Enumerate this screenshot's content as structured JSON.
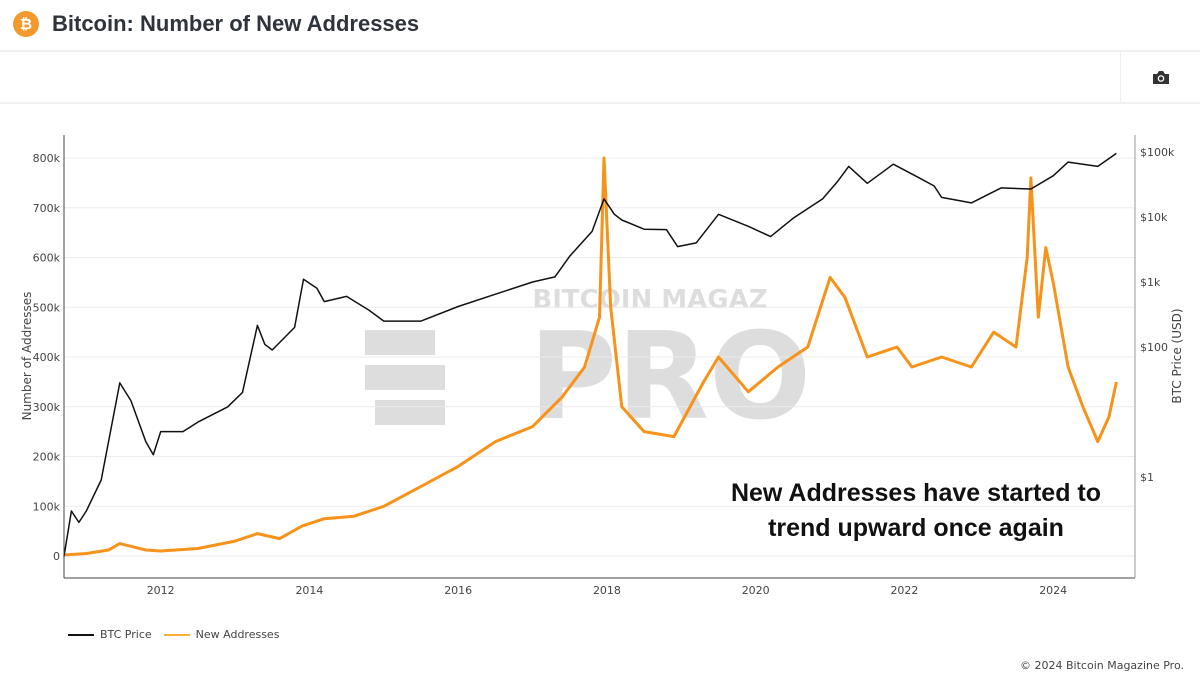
{
  "header": {
    "title": "Bitcoin: Number of New Addresses",
    "logo_icon": "bitcoin-icon"
  },
  "toolbar": {
    "camera_icon": "camera-icon"
  },
  "watermark": "BITCOIN MAGAZINE PRO",
  "annotation": {
    "line1": "New Addresses have started to",
    "line2": "trend upward once again"
  },
  "footer": {
    "copyright": "© 2024 Bitcoin Magazine Pro."
  },
  "chart_data": {
    "type": "line",
    "xlim": [
      2010.7,
      2025.1
    ],
    "x_ticks": [
      "2012",
      "2014",
      "2016",
      "2018",
      "2020",
      "2022",
      "2024"
    ],
    "y_left": {
      "label": "Number of Addresses",
      "range": [
        -40000,
        850000
      ],
      "ticks": [
        "0",
        "100k",
        "200k",
        "300k",
        "400k",
        "500k",
        "600k",
        "700k",
        "800k"
      ]
    },
    "y_right": {
      "label": "BTC Price (USD)",
      "scale": "log",
      "range": [
        0.02,
        200000
      ],
      "ticks": [
        "$1",
        "$100",
        "$1k",
        "$10k",
        "$100k"
      ]
    },
    "grid": true,
    "legend_position": "bottom-left",
    "colors": {
      "price": "#111111",
      "addresses": "#f7931a"
    },
    "series": [
      {
        "name": "BTC Price",
        "axis": "right",
        "x": [
          2010.7,
          2010.8,
          2010.9,
          2011.0,
          2011.2,
          2011.45,
          2011.6,
          2011.8,
          2011.9,
          2012.0,
          2012.3,
          2012.5,
          2012.9,
          2013.1,
          2013.3,
          2013.4,
          2013.5,
          2013.8,
          2013.92,
          2014.1,
          2014.2,
          2014.5,
          2014.8,
          2015.0,
          2015.5,
          2016.0,
          2016.5,
          2017.0,
          2017.3,
          2017.5,
          2017.8,
          2017.96,
          2018.1,
          2018.2,
          2018.5,
          2018.8,
          2018.95,
          2019.2,
          2019.5,
          2019.9,
          2020.2,
          2020.5,
          2020.9,
          2021.1,
          2021.25,
          2021.5,
          2021.85,
          2022.2,
          2022.4,
          2022.5,
          2022.9,
          2023.3,
          2023.7,
          2024.0,
          2024.2,
          2024.6,
          2024.85
        ],
        "values": [
          0.06,
          0.3,
          0.2,
          0.3,
          0.9,
          28,
          15,
          3.5,
          2.2,
          5,
          5,
          7,
          12,
          20,
          215,
          110,
          90,
          200,
          1100,
          800,
          500,
          600,
          370,
          250,
          250,
          420,
          650,
          1000,
          1200,
          2500,
          6000,
          19000,
          11000,
          9000,
          6500,
          6400,
          3500,
          4000,
          11000,
          7200,
          5000,
          9500,
          19000,
          35000,
          60000,
          33000,
          65000,
          40000,
          30000,
          20000,
          16500,
          28000,
          27000,
          43000,
          70000,
          60000,
          95000
        ]
      },
      {
        "name": "New Addresses",
        "axis": "left",
        "x": [
          2010.7,
          2011.0,
          2011.3,
          2011.45,
          2011.8,
          2012.0,
          2012.5,
          2013.0,
          2013.3,
          2013.6,
          2013.9,
          2014.2,
          2014.6,
          2015.0,
          2015.5,
          2016.0,
          2016.5,
          2017.0,
          2017.4,
          2017.7,
          2017.9,
          2017.96,
          2018.05,
          2018.2,
          2018.5,
          2018.9,
          2019.3,
          2019.5,
          2019.9,
          2020.3,
          2020.7,
          2021.0,
          2021.2,
          2021.5,
          2021.9,
          2022.1,
          2022.5,
          2022.9,
          2023.2,
          2023.5,
          2023.65,
          2023.7,
          2023.8,
          2023.9,
          2024.0,
          2024.2,
          2024.4,
          2024.6,
          2024.75,
          2024.85
        ],
        "values": [
          2000,
          5000,
          12000,
          25000,
          12000,
          10000,
          15000,
          30000,
          45000,
          35000,
          60000,
          75000,
          80000,
          100000,
          140000,
          180000,
          230000,
          260000,
          320000,
          380000,
          480000,
          800000,
          500000,
          300000,
          250000,
          240000,
          350000,
          400000,
          330000,
          380000,
          420000,
          560000,
          520000,
          400000,
          420000,
          380000,
          400000,
          380000,
          450000,
          420000,
          600000,
          760000,
          480000,
          620000,
          550000,
          380000,
          300000,
          230000,
          280000,
          350000
        ]
      }
    ]
  }
}
